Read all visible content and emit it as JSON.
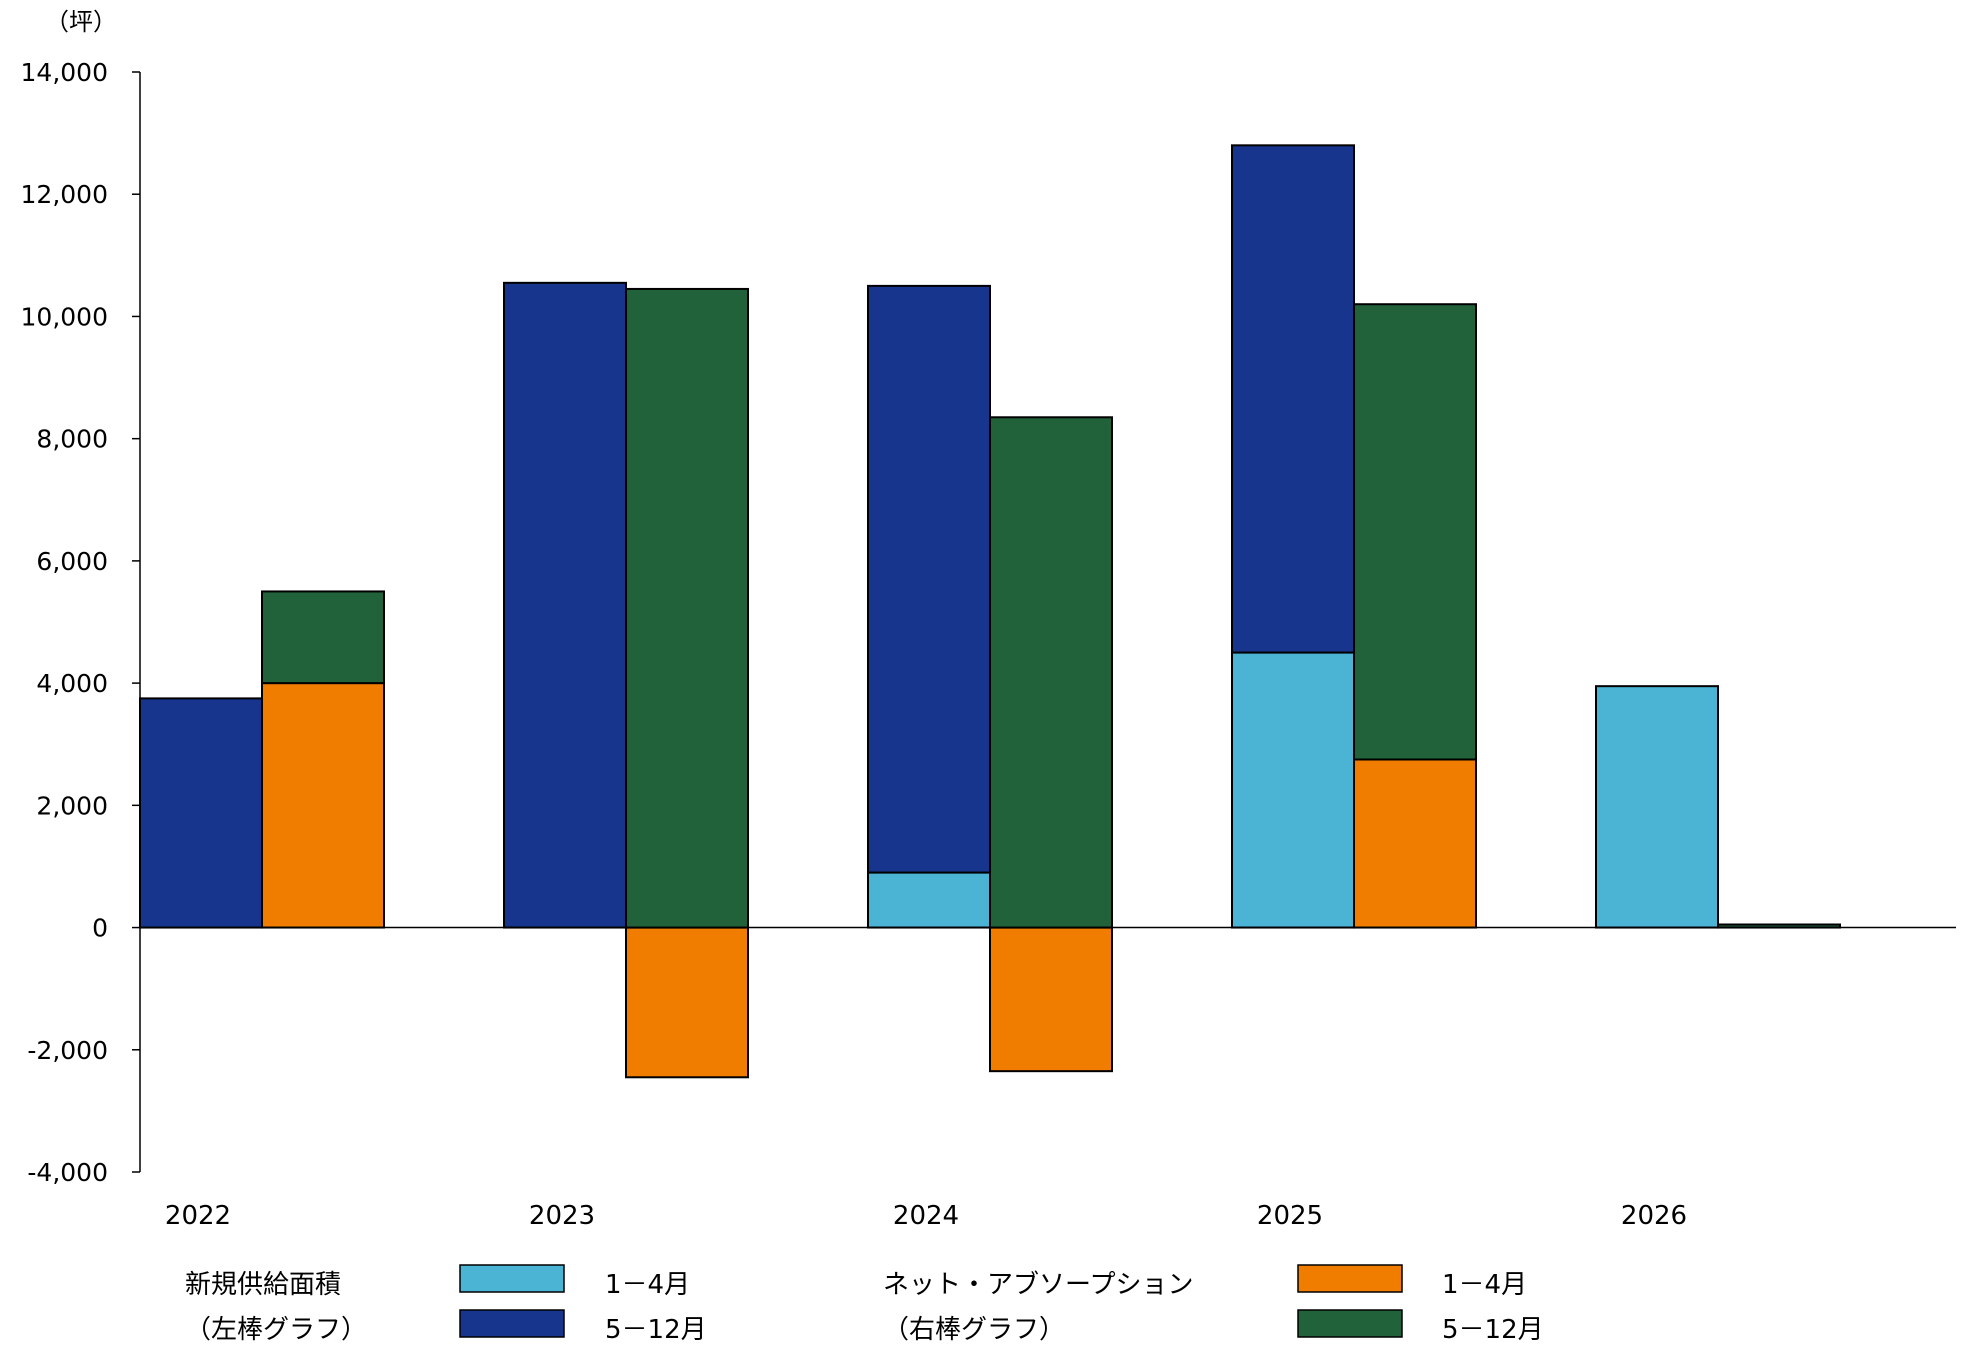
{
  "chart_data": {
    "type": "bar",
    "unit_label": "（坪）",
    "categories": [
      "2022",
      "2023",
      "2024",
      "2025",
      "2026"
    ],
    "ylim": [
      -4000,
      14000
    ],
    "yticks": [
      14000,
      12000,
      10000,
      8000,
      6000,
      4000,
      2000,
      0,
      -2000,
      -4000
    ],
    "ytick_labels": [
      "14,000",
      "12,000",
      "10,000",
      "8,000",
      "6,000",
      "4,000",
      "2,000",
      "0",
      "-2,000",
      "-4,000"
    ],
    "grid": false,
    "stacked_pairs": true,
    "groups": [
      {
        "name": "新規供給面積",
        "position_label": "（左棒グラフ）",
        "series": [
          {
            "name": "1－4月",
            "color": "#4BB3D4",
            "values": [
              0,
              0,
              900,
              4500,
              3950
            ]
          },
          {
            "name": "5－12月",
            "color": "#17358C",
            "values": [
              3750,
              10550,
              9600,
              8300,
              0
            ]
          }
        ]
      },
      {
        "name": "ネット・アブソープション",
        "position_label": "（右棒グラフ）",
        "series": [
          {
            "name": "1－4月",
            "color": "#F07D00",
            "values": [
              4000,
              -2450,
              -2350,
              2750,
              0
            ]
          },
          {
            "name": "5－12月",
            "color": "#22623A",
            "values": [
              1500,
              10450,
              8350,
              7450,
              50
            ]
          }
        ]
      }
    ],
    "legend_placement": "bottom"
  }
}
